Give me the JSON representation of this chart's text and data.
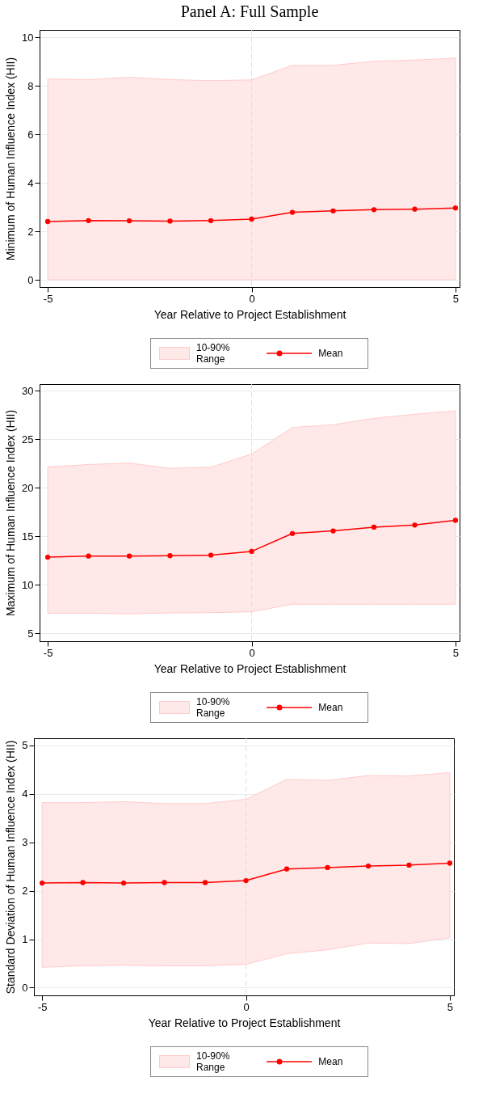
{
  "chart_data": [
    {
      "type": "line",
      "title": "Panel A: Full Sample",
      "xlabel": "Year Relative to Project Establishment",
      "ylabel": "Minimum of Human Influence Index (HII)",
      "x": [
        -5,
        -4,
        -3,
        -2,
        -1,
        0,
        1,
        2,
        3,
        4,
        5
      ],
      "xlim": [
        -5.2,
        5.1
      ],
      "xticks": [
        -5,
        0,
        5
      ],
      "ylim": [
        -0.3,
        10.3
      ],
      "yticks": [
        0,
        2,
        4,
        6,
        8,
        10
      ],
      "grid": "y",
      "legend": "bottom",
      "marker": "circle",
      "annotations": [
        "10-90% Range"
      ],
      "ref_lines": [
        {
          "axis": "x",
          "value": 0,
          "color": "#dddddd",
          "line_style": "dashed"
        }
      ],
      "series": [
        {
          "name": "Mean",
          "color": "#ff0000",
          "values": [
            2.4,
            2.44,
            2.43,
            2.42,
            2.44,
            2.5,
            2.78,
            2.84,
            2.89,
            2.91,
            2.96
          ],
          "lower": [
            0,
            0,
            0,
            0,
            0,
            0,
            0,
            0,
            0,
            0,
            0
          ],
          "upper": [
            8.28,
            8.25,
            8.35,
            8.25,
            8.21,
            8.24,
            8.84,
            8.84,
            9.01,
            9.06,
            9.14
          ]
        }
      ]
    },
    {
      "type": "line",
      "xlabel": "Year Relative to Project Establishment",
      "ylabel": "Maximum of Human Influence Index (HII)",
      "x": [
        -5,
        -4,
        -3,
        -2,
        -1,
        0,
        1,
        2,
        3,
        4,
        5
      ],
      "xlim": [
        -5.2,
        5.1
      ],
      "xticks": [
        -5,
        0,
        5
      ],
      "ylim": [
        4.2,
        30.7
      ],
      "yticks": [
        5,
        10,
        15,
        20,
        25,
        30
      ],
      "grid": "y",
      "legend": "bottom",
      "marker": "circle",
      "annotations": [
        "10-90% Range"
      ],
      "ref_lines": [
        {
          "axis": "x",
          "value": 0,
          "color": "#dddddd",
          "line_style": "dashed"
        }
      ],
      "series": [
        {
          "name": "Mean",
          "color": "#ff0000",
          "values": [
            12.86,
            12.98,
            12.98,
            13.01,
            13.07,
            13.46,
            15.3,
            15.57,
            15.96,
            16.17,
            16.66
          ],
          "lower": [
            7.08,
            7.08,
            7.02,
            7.11,
            7.14,
            7.23,
            8.01,
            8.01,
            8.01,
            8.01,
            8.01
          ],
          "upper": [
            22.17,
            22.41,
            22.56,
            22.02,
            22.14,
            23.49,
            26.23,
            26.51,
            27.17,
            27.59,
            27.95
          ]
        }
      ]
    },
    {
      "type": "line",
      "xlabel": "Year Relative to Project Establishment",
      "ylabel": "Standard Deviation of Human Influence Index (HII)",
      "x": [
        -5,
        -4,
        -3,
        -2,
        -1,
        0,
        1,
        2,
        3,
        4,
        5
      ],
      "xlim": [
        -5.2,
        5.1
      ],
      "xticks": [
        -5,
        0,
        5
      ],
      "ylim": [
        -0.16,
        5.15
      ],
      "yticks": [
        0,
        1,
        2,
        3,
        4,
        5
      ],
      "grid": "y",
      "legend": "bottom",
      "marker": "circle",
      "annotations": [
        "10-90% Range"
      ],
      "ref_lines": [
        {
          "axis": "x",
          "value": 0,
          "color": "#dddddd",
          "line_style": "dashed"
        }
      ],
      "series": [
        {
          "name": "Mean",
          "color": "#ff0000",
          "values": [
            2.16,
            2.17,
            2.16,
            2.17,
            2.17,
            2.21,
            2.45,
            2.48,
            2.51,
            2.53,
            2.57
          ],
          "lower": [
            0.42,
            0.45,
            0.46,
            0.45,
            0.45,
            0.48,
            0.7,
            0.78,
            0.92,
            0.91,
            1.03
          ],
          "upper": [
            3.82,
            3.82,
            3.84,
            3.8,
            3.8,
            3.89,
            4.3,
            4.28,
            4.38,
            4.37,
            4.44
          ]
        }
      ]
    }
  ]
}
